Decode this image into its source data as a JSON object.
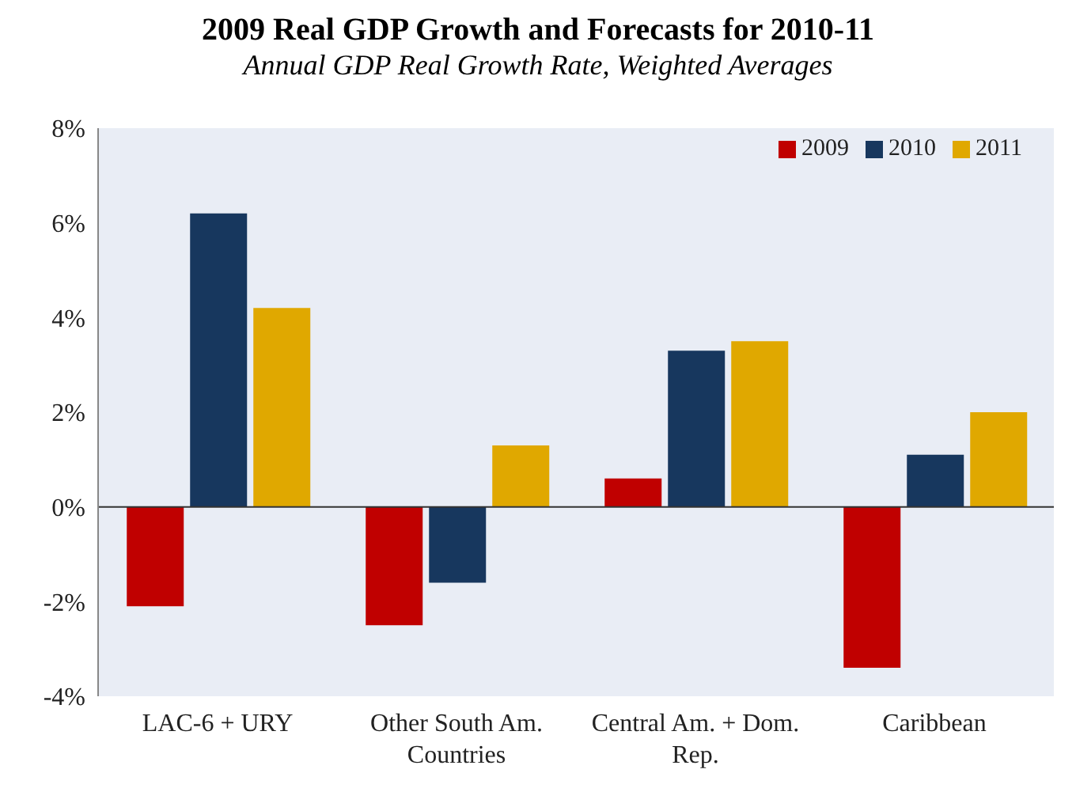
{
  "chart_data": {
    "type": "bar",
    "title": "2009 Real GDP Growth and Forecasts for 2010-11",
    "subtitle": "Annual GDP Real Growth Rate, Weighted Averages",
    "categories": [
      "LAC-6 + URY",
      "Other South Am. Countries",
      "Central Am. + Dom. Rep.",
      "Caribbean"
    ],
    "series": [
      {
        "name": "2009",
        "color": "#c00000",
        "values": [
          -2.1,
          -2.5,
          0.6,
          -3.4
        ]
      },
      {
        "name": "2010",
        "color": "#17375e",
        "values": [
          6.2,
          -1.6,
          3.3,
          1.1
        ]
      },
      {
        "name": "2011",
        "color": "#e0a800",
        "values": [
          4.2,
          1.3,
          3.5,
          2.0
        ]
      }
    ],
    "ylim": [
      -4,
      8
    ],
    "yticks": [
      {
        "value": -4,
        "label": "-4%"
      },
      {
        "value": -2,
        "label": "-2%"
      },
      {
        "value": 0,
        "label": "0%"
      },
      {
        "value": 2,
        "label": "2%"
      },
      {
        "value": 4,
        "label": "4%"
      },
      {
        "value": 6,
        "label": "6%"
      },
      {
        "value": 8,
        "label": "8%"
      }
    ],
    "ref_lines": [
      {
        "axis": "y",
        "value": 0,
        "color": "#333333"
      }
    ],
    "legend": "top right"
  }
}
